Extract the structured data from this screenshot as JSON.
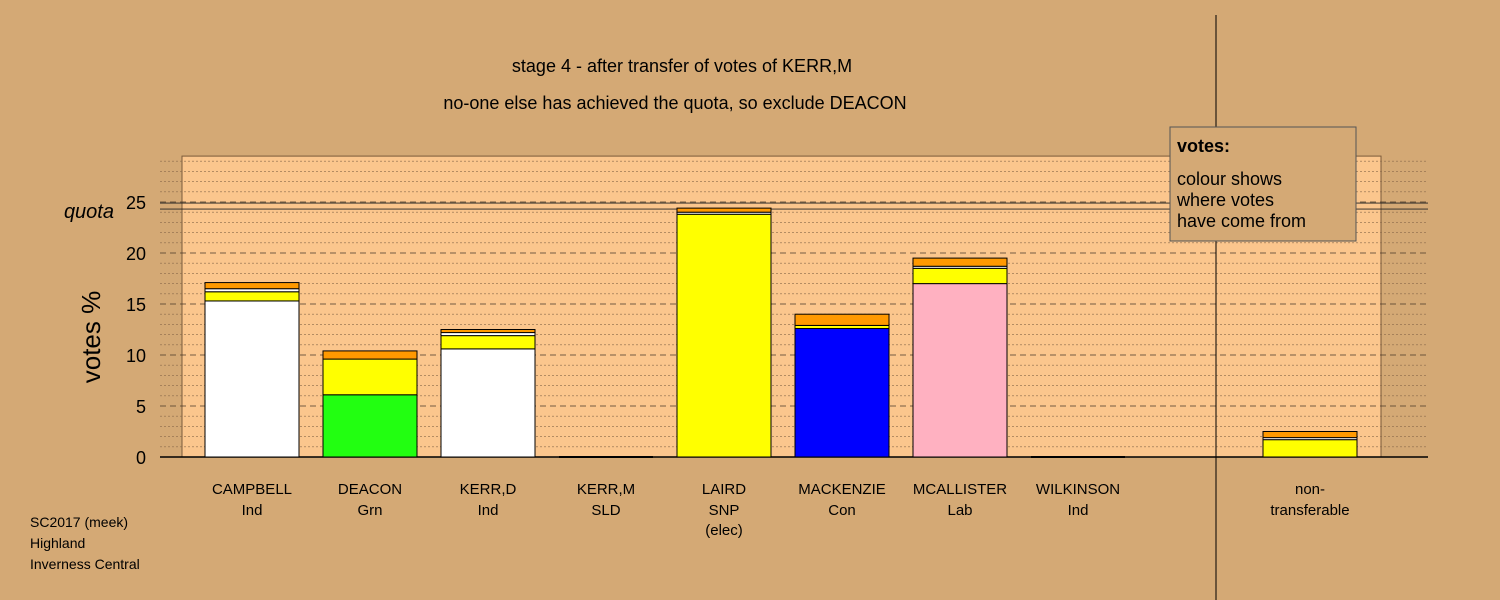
{
  "chart_data": {
    "type": "bar",
    "stacked": true,
    "title": "stage 4 - after transfer of votes of KERR,M",
    "subtitle": "no-one else has achieved the quota, so exclude DEACON",
    "ylabel": "votes %",
    "ylim": [
      0,
      29.5
    ],
    "yticks": [
      0,
      5,
      10,
      15,
      20,
      25
    ],
    "quota": 24.6,
    "quota_label": "quota",
    "grid": true,
    "legend": {
      "title": "votes:",
      "lines": [
        "colour shows",
        "where votes",
        "have come from"
      ],
      "placement": "top-right"
    },
    "candidates": [
      {
        "name": "CAMPBELL",
        "party": "Ind",
        "note": "",
        "segments": [
          {
            "value": 15.3,
            "color": "#ffffff"
          },
          {
            "value": 0.9,
            "color": "#ffff00"
          },
          {
            "value": 0.3,
            "color": "#ffffff"
          },
          {
            "value": 0.6,
            "color": "#ff9900"
          }
        ]
      },
      {
        "name": "DEACON",
        "party": "Grn",
        "note": "",
        "segments": [
          {
            "value": 6.1,
            "color": "#22ff11"
          },
          {
            "value": 3.5,
            "color": "#ffff00"
          },
          {
            "value": 0.8,
            "color": "#ff9900"
          }
        ]
      },
      {
        "name": "KERR,D",
        "party": "Ind",
        "note": "",
        "segments": [
          {
            "value": 10.6,
            "color": "#ffffff"
          },
          {
            "value": 1.3,
            "color": "#ffff00"
          },
          {
            "value": 0.3,
            "color": "#ffffff"
          },
          {
            "value": 0.3,
            "color": "#ff9900"
          }
        ]
      },
      {
        "name": "KERR,M",
        "party": "SLD",
        "note": "",
        "segments": []
      },
      {
        "name": "LAIRD",
        "party": "SNP",
        "note": "(elec)",
        "segments": [
          {
            "value": 23.8,
            "color": "#ffff00"
          },
          {
            "value": 0.2,
            "color": "#ffffff"
          },
          {
            "value": 0.4,
            "color": "#ff9900"
          }
        ]
      },
      {
        "name": "MACKENZIE",
        "party": "Con",
        "note": "",
        "segments": [
          {
            "value": 12.6,
            "color": "#0000ff"
          },
          {
            "value": 0.3,
            "color": "#ffff00"
          },
          {
            "value": 1.1,
            "color": "#ff9900"
          }
        ]
      },
      {
        "name": "MCALLISTER",
        "party": "Lab",
        "note": "",
        "segments": [
          {
            "value": 17.0,
            "color": "#ffb1c1"
          },
          {
            "value": 1.5,
            "color": "#ffff00"
          },
          {
            "value": 0.2,
            "color": "#ffffff"
          },
          {
            "value": 0.8,
            "color": "#ff9900"
          }
        ]
      },
      {
        "name": "WILKINSON",
        "party": "Ind",
        "note": "",
        "segments": []
      }
    ],
    "nontransferable": {
      "label_line1": "non-",
      "label_line2": "transferable",
      "segments": [
        {
          "value": 1.7,
          "color": "#ffff00"
        },
        {
          "value": 0.2,
          "color": "#ffffff"
        },
        {
          "value": 0.6,
          "color": "#ff9900"
        }
      ]
    }
  },
  "footer": {
    "line1": "SC2017 (meek)",
    "line2": "Highland",
    "line3": "Inverness Central"
  }
}
